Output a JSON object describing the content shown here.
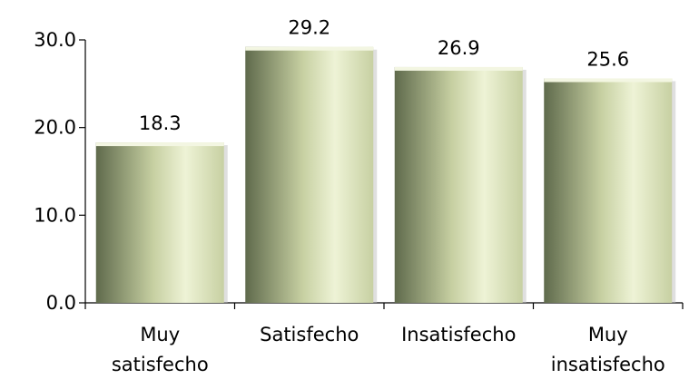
{
  "chart_data": {
    "type": "bar",
    "categories": [
      [
        "Muy",
        "satisfecho"
      ],
      [
        "Satisfecho"
      ],
      [
        "Insatisfecho"
      ],
      [
        "Muy",
        "insatisfecho"
      ]
    ],
    "values": [
      18.3,
      29.2,
      26.9,
      25.6
    ],
    "value_labels": [
      "18.3",
      "29.2",
      "26.9",
      "25.6"
    ],
    "y_ticks": [
      0.0,
      10.0,
      20.0,
      30.0
    ],
    "y_tick_labels": [
      "0.0",
      "10.0",
      "20.0",
      "30.0"
    ],
    "ylim": [
      0,
      30
    ],
    "title": "",
    "xlabel": "",
    "ylabel": "",
    "grid": false,
    "legend": "none",
    "colors": {
      "bar_dark": "#5f6a4c",
      "bar_light": "#eef3d6",
      "bar_mid": "#c7d0a2",
      "axis": "#000000",
      "text": "#000000"
    }
  }
}
